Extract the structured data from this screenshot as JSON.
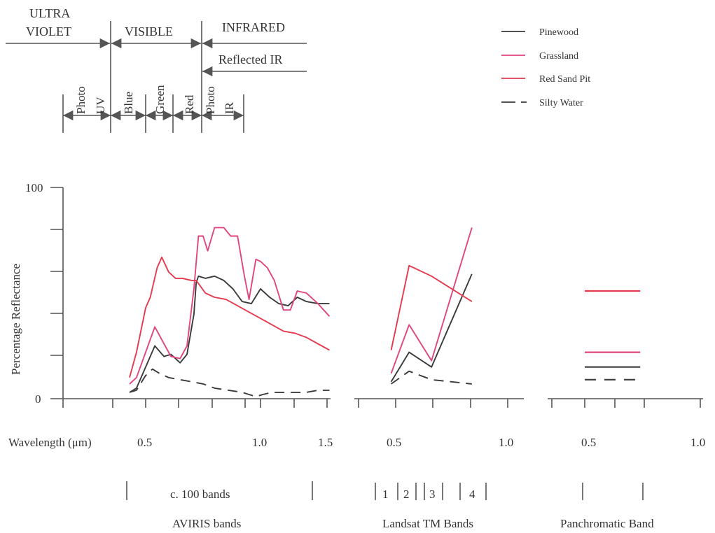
{
  "colors": {
    "pinewood": "#3a3a3a",
    "grassland": "#e0457e",
    "red_sand_pit": "#e53a4e",
    "silty_water": "#3a3a3a",
    "axis": "#555555",
    "text": "#333333"
  },
  "spectrum": {
    "regions": [
      "ULTRA",
      "VIOLET",
      "VISIBLE",
      "INFRARED"
    ],
    "reflected_ir": "Reflected IR",
    "bands": [
      "Photo",
      "UV",
      "Blue",
      "Green",
      "Red",
      "Photo",
      "IR"
    ]
  },
  "legend": [
    "Pinewood",
    "Grassland",
    "Red Sand Pit",
    "Silty Water"
  ],
  "axis_labels": {
    "y_title": "Percentage Reflectance",
    "y_max": "100",
    "y_min": "0",
    "x_title": "Wavelength (μm)",
    "p1_ticks": [
      "0.5",
      "1.0",
      "1.5"
    ],
    "p2_ticks": [
      "0.5",
      "1.0"
    ],
    "p3_ticks": [
      "0.5",
      "1.0"
    ]
  },
  "band_groups": {
    "aviris_count": "c. 100 bands",
    "aviris_label": "AVIRIS bands",
    "tm_numbers": [
      "1",
      "2",
      "3",
      "4"
    ],
    "tm_label": "Landsat TM Bands",
    "pan_label": "Panchromatic Band"
  },
  "chart_data": [
    {
      "type": "line",
      "title": "",
      "xlabel": "Wavelength (μm)",
      "ylabel": "Percentage Reflectance",
      "xlim": [
        0.35,
        1.5
      ],
      "ylim": [
        0,
        100
      ],
      "series": [
        {
          "name": "Pinewood",
          "style": "solid",
          "x": [
            0.43,
            0.46,
            0.5,
            0.54,
            0.58,
            0.61,
            0.65,
            0.68,
            0.71,
            0.72,
            0.73,
            0.76,
            0.8,
            0.84,
            0.88,
            0.92,
            0.96,
            1.0,
            1.04,
            1.08,
            1.12,
            1.16,
            1.2,
            1.25,
            1.3
          ],
          "y": [
            3,
            5,
            15,
            25,
            20,
            21,
            17,
            21,
            40,
            55,
            58,
            57,
            58,
            56,
            52,
            46,
            45,
            52,
            48,
            45,
            44,
            48,
            46,
            45,
            45
          ]
        },
        {
          "name": "Grassland",
          "style": "solid",
          "x": [
            0.43,
            0.46,
            0.5,
            0.54,
            0.58,
            0.61,
            0.65,
            0.68,
            0.71,
            0.73,
            0.75,
            0.77,
            0.8,
            0.84,
            0.87,
            0.9,
            0.93,
            0.95,
            0.98,
            1.0,
            1.03,
            1.06,
            1.1,
            1.13,
            1.16,
            1.2,
            1.25,
            1.3
          ],
          "y": [
            7,
            10,
            22,
            34,
            26,
            20,
            19,
            25,
            52,
            77,
            77,
            70,
            81,
            81,
            77,
            77,
            58,
            47,
            66,
            65,
            62,
            56,
            42,
            42,
            51,
            50,
            45,
            39
          ]
        },
        {
          "name": "Red Sand Pit",
          "style": "solid",
          "x": [
            0.43,
            0.46,
            0.5,
            0.52,
            0.55,
            0.57,
            0.6,
            0.63,
            0.66,
            0.7,
            0.72,
            0.74,
            0.76,
            0.8,
            0.85,
            0.9,
            0.95,
            1.0,
            1.05,
            1.1,
            1.15,
            1.2,
            1.25,
            1.3
          ],
          "y": [
            10,
            22,
            43,
            48,
            62,
            67,
            60,
            57,
            57,
            56,
            56,
            53,
            50,
            48,
            47,
            44,
            41,
            38,
            35,
            32,
            31,
            29,
            26,
            23
          ]
        },
        {
          "name": "Silty Water",
          "style": "dashed",
          "x": [
            0.43,
            0.46,
            0.5,
            0.53,
            0.56,
            0.6,
            0.65,
            0.7,
            0.75,
            0.8,
            0.86,
            0.92,
            0.95,
            0.98,
            1.01,
            1.05,
            1.1,
            1.15,
            1.2,
            1.25,
            1.3
          ],
          "y": [
            3,
            4,
            11,
            14,
            12,
            10,
            9,
            8,
            7,
            5,
            4,
            3,
            2,
            1,
            2,
            3,
            3,
            3,
            3,
            4,
            4
          ]
        }
      ]
    },
    {
      "type": "line",
      "title": "Landsat TM Bands",
      "xlabel": "",
      "ylabel": "Percentage Reflectance",
      "xlim": [
        0.35,
        1.0
      ],
      "ylim": [
        0,
        100
      ],
      "series": [
        {
          "name": "Pinewood",
          "style": "solid",
          "x": [
            0.48,
            0.56,
            0.66,
            0.84
          ],
          "y": [
            8,
            22,
            15,
            59
          ]
        },
        {
          "name": "Grassland",
          "style": "solid",
          "x": [
            0.48,
            0.56,
            0.66,
            0.84
          ],
          "y": [
            12,
            35,
            18,
            81
          ]
        },
        {
          "name": "Red Sand Pit",
          "style": "solid",
          "x": [
            0.48,
            0.56,
            0.66,
            0.84
          ],
          "y": [
            23,
            63,
            58,
            46
          ]
        },
        {
          "name": "Silty Water",
          "style": "dashed",
          "x": [
            0.48,
            0.56,
            0.66,
            0.84
          ],
          "y": [
            7,
            13,
            9,
            7
          ]
        }
      ]
    },
    {
      "type": "line",
      "title": "Panchromatic Band",
      "xlabel": "",
      "ylabel": "Percentage Reflectance",
      "xlim": [
        0.35,
        1.0
      ],
      "ylim": [
        0,
        100
      ],
      "series": [
        {
          "name": "Pinewood",
          "style": "solid",
          "x": [
            0.5,
            0.74
          ],
          "y": [
            15,
            15
          ]
        },
        {
          "name": "Grassland",
          "style": "solid",
          "x": [
            0.5,
            0.74
          ],
          "y": [
            22,
            22
          ]
        },
        {
          "name": "Red Sand Pit",
          "style": "solid",
          "x": [
            0.5,
            0.74
          ],
          "y": [
            51,
            51
          ]
        },
        {
          "name": "Silty Water",
          "style": "dashed",
          "x": [
            0.5,
            0.74
          ],
          "y": [
            9,
            9
          ]
        }
      ]
    }
  ]
}
